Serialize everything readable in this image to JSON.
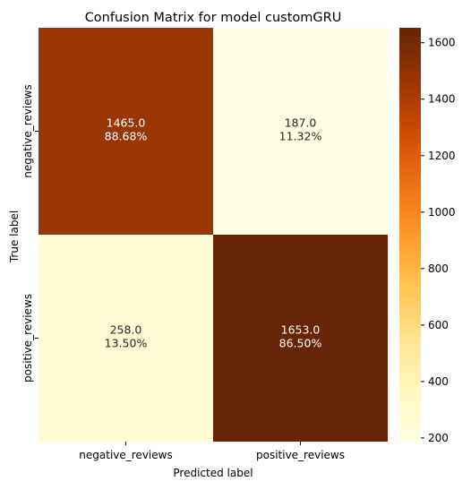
{
  "chart_data": {
    "type": "heatmap",
    "title": "Confusion Matrix for model customGRU",
    "xlabel": "Predicted label",
    "ylabel": "True label",
    "x_categories": [
      "negative_reviews",
      "positive_reviews"
    ],
    "y_categories": [
      "negative_reviews",
      "positive_reviews"
    ],
    "values": [
      [
        1465.0,
        187.0
      ],
      [
        258.0,
        1653.0
      ]
    ],
    "cell_labels": [
      [
        [
          "1465.0",
          "88.68%"
        ],
        [
          "187.0",
          "11.32%"
        ]
      ],
      [
        [
          "258.0",
          "13.50%"
        ],
        [
          "1653.0",
          "86.50%"
        ]
      ]
    ],
    "colorbar": {
      "range": [
        187,
        1653
      ],
      "ticks": [
        200,
        400,
        600,
        800,
        1000,
        1200,
        1400,
        1600
      ],
      "tick_labels": [
        "200",
        "400",
        "600",
        "800",
        "1000",
        "1200",
        "1400",
        "1600"
      ]
    },
    "colormap": "YlOrBr",
    "colors": {
      "light_text": "#ffffff",
      "dark_text": "#262626",
      "axis": "#000000"
    }
  }
}
